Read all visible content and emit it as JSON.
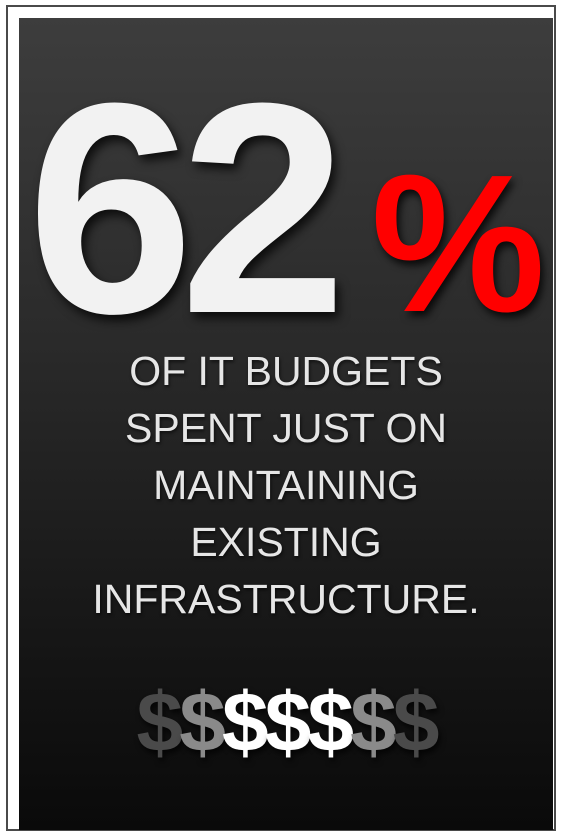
{
  "headline": {
    "number": "62",
    "symbol": "%"
  },
  "statement_lines": [
    "OF IT BUDGETS",
    "SPENT JUST ON",
    "MAINTAINING",
    "EXISTING",
    "INFRASTRUCTURE."
  ],
  "dollar_signs": [
    {
      "glyph": "$",
      "tone": "dark"
    },
    {
      "glyph": "$",
      "tone": "mid"
    },
    {
      "glyph": "$",
      "tone": "light"
    },
    {
      "glyph": "$",
      "tone": "light"
    },
    {
      "glyph": "$",
      "tone": "light"
    },
    {
      "glyph": "$",
      "tone": "mid"
    },
    {
      "glyph": "$",
      "tone": "dark"
    }
  ],
  "colors": {
    "accent": "#ff0000",
    "number": "#f2f2f2",
    "text": "#e6e6e6",
    "background_top": "#3d3d3d",
    "background_bottom": "#0a0a0a"
  }
}
